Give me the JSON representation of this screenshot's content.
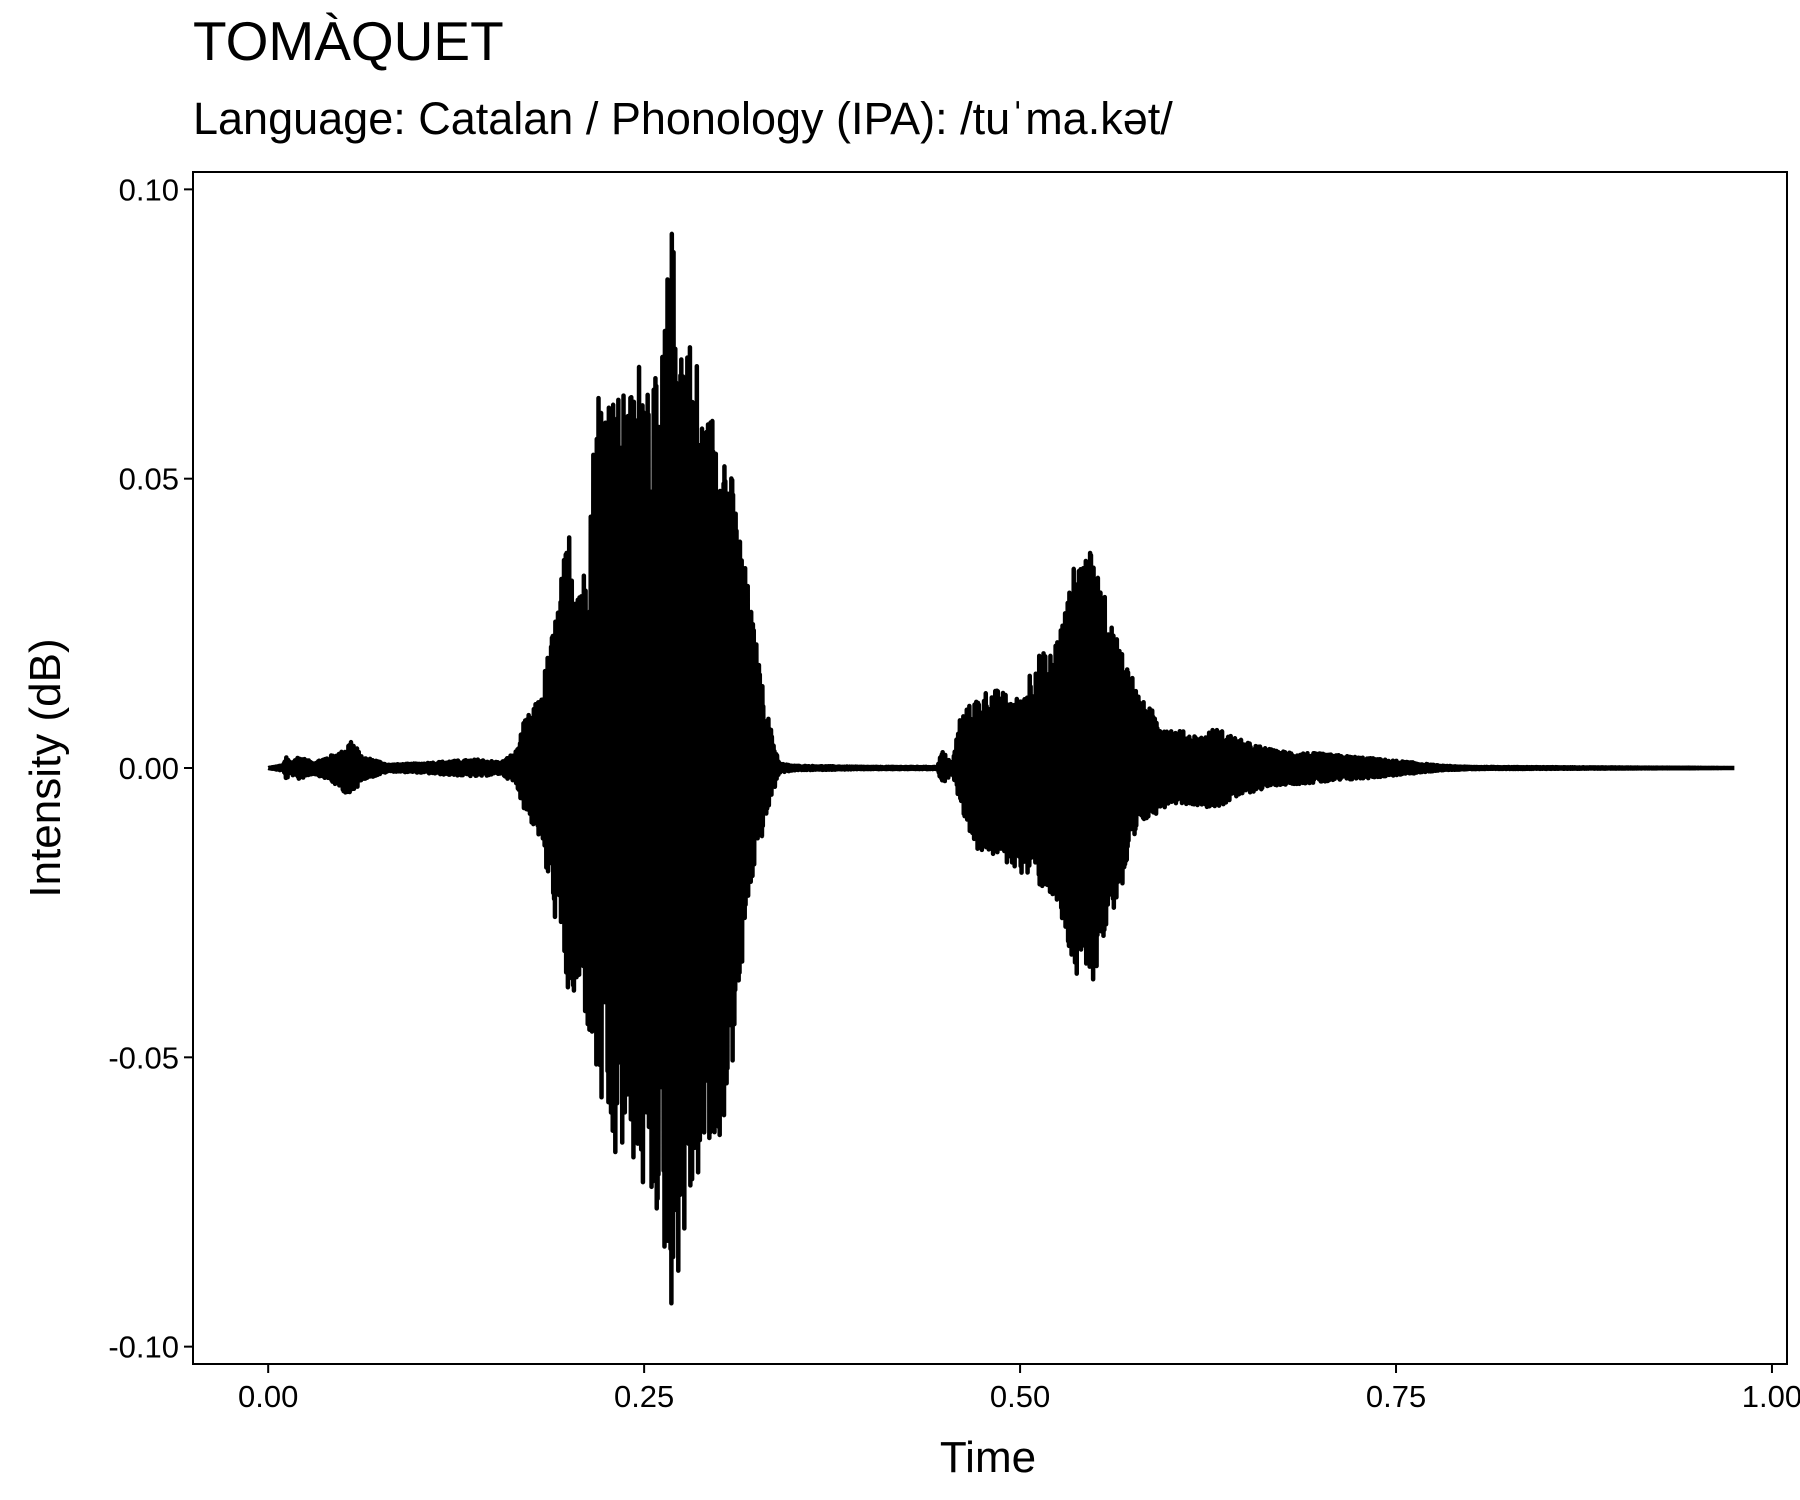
{
  "chart_data": {
    "type": "line",
    "title": "TOMÀQUET",
    "subtitle": "Language: Catalan / Phonology (IPA): /tuˈma.kət/",
    "xlabel": "Time",
    "ylabel": "Intensity (dB)",
    "xlim": [
      -0.05,
      1.01
    ],
    "ylim": [
      -0.103,
      0.103
    ],
    "x_ticks": [
      0.0,
      0.25,
      0.5,
      0.75,
      1.0
    ],
    "x_tick_labels": [
      "0.00",
      "0.25",
      "0.50",
      "0.75",
      "1.00"
    ],
    "y_ticks": [
      -0.1,
      -0.05,
      0.0,
      0.05,
      0.1
    ],
    "y_tick_labels": [
      "-0.10",
      "-0.05",
      "0.00",
      "0.05",
      "0.10"
    ],
    "grid": false,
    "legend": "none",
    "series": [
      {
        "color": "#000000",
        "envelope_positive": {
          "x": [
            0.0,
            0.01,
            0.012,
            0.015,
            0.02,
            0.03,
            0.04,
            0.05,
            0.055,
            0.058,
            0.062,
            0.07,
            0.08,
            0.1,
            0.12,
            0.14,
            0.155,
            0.165,
            0.17,
            0.18,
            0.19,
            0.2,
            0.21,
            0.22,
            0.23,
            0.24,
            0.25,
            0.26,
            0.268,
            0.275,
            0.285,
            0.29,
            0.3,
            0.31,
            0.32,
            0.33,
            0.335,
            0.34,
            0.35,
            0.4,
            0.445,
            0.448,
            0.455,
            0.46,
            0.47,
            0.48,
            0.5,
            0.51,
            0.52,
            0.53,
            0.54,
            0.55,
            0.56,
            0.57,
            0.58,
            0.6,
            0.62,
            0.63,
            0.65,
            0.67,
            0.7,
            0.73,
            0.76,
            0.78,
            0.8,
            0.9,
            0.975
          ],
          "y": [
            0.0,
            0.0005,
            0.002,
            0.001,
            0.002,
            0.001,
            0.002,
            0.003,
            0.005,
            0.004,
            0.002,
            0.0015,
            0.0006,
            0.0008,
            0.0012,
            0.0015,
            0.001,
            0.003,
            0.008,
            0.012,
            0.025,
            0.042,
            0.035,
            0.07,
            0.065,
            0.065,
            0.075,
            0.065,
            0.095,
            0.08,
            0.072,
            0.06,
            0.065,
            0.048,
            0.03,
            0.012,
            0.006,
            0.0008,
            0.0004,
            0.0002,
            0.0002,
            0.003,
            0.0008,
            0.009,
            0.012,
            0.014,
            0.012,
            0.02,
            0.02,
            0.028,
            0.04,
            0.036,
            0.026,
            0.02,
            0.012,
            0.007,
            0.0055,
            0.007,
            0.0045,
            0.003,
            0.0025,
            0.0018,
            0.001,
            0.0004,
            0.0002,
            0.0001,
            0.0
          ]
        },
        "envelope_negative": {
          "x": [
            0.0,
            0.01,
            0.012,
            0.015,
            0.02,
            0.03,
            0.04,
            0.05,
            0.055,
            0.058,
            0.062,
            0.07,
            0.08,
            0.1,
            0.12,
            0.14,
            0.155,
            0.165,
            0.17,
            0.18,
            0.19,
            0.2,
            0.21,
            0.22,
            0.23,
            0.24,
            0.25,
            0.26,
            0.268,
            0.275,
            0.285,
            0.29,
            0.3,
            0.31,
            0.32,
            0.33,
            0.335,
            0.34,
            0.35,
            0.4,
            0.445,
            0.448,
            0.455,
            0.46,
            0.47,
            0.48,
            0.5,
            0.51,
            0.52,
            0.53,
            0.54,
            0.55,
            0.56,
            0.57,
            0.58,
            0.6,
            0.62,
            0.63,
            0.65,
            0.67,
            0.7,
            0.73,
            0.76,
            0.78,
            0.8,
            0.9,
            0.975
          ],
          "y": [
            0.0,
            -0.0005,
            -0.002,
            -0.001,
            -0.002,
            -0.001,
            -0.002,
            -0.004,
            -0.005,
            -0.004,
            -0.002,
            -0.0015,
            -0.0006,
            -0.0008,
            -0.0012,
            -0.0015,
            -0.001,
            -0.003,
            -0.007,
            -0.012,
            -0.025,
            -0.041,
            -0.042,
            -0.058,
            -0.07,
            -0.066,
            -0.075,
            -0.078,
            -0.094,
            -0.085,
            -0.072,
            -0.07,
            -0.066,
            -0.05,
            -0.022,
            -0.01,
            -0.005,
            -0.0008,
            -0.0004,
            -0.0002,
            -0.0002,
            -0.003,
            -0.0008,
            -0.006,
            -0.014,
            -0.015,
            -0.018,
            -0.02,
            -0.022,
            -0.03,
            -0.04,
            -0.036,
            -0.026,
            -0.02,
            -0.01,
            -0.006,
            -0.0065,
            -0.007,
            -0.0045,
            -0.003,
            -0.0025,
            -0.0018,
            -0.001,
            -0.0004,
            -0.0002,
            -0.0001,
            0.0
          ]
        }
      }
    ]
  }
}
